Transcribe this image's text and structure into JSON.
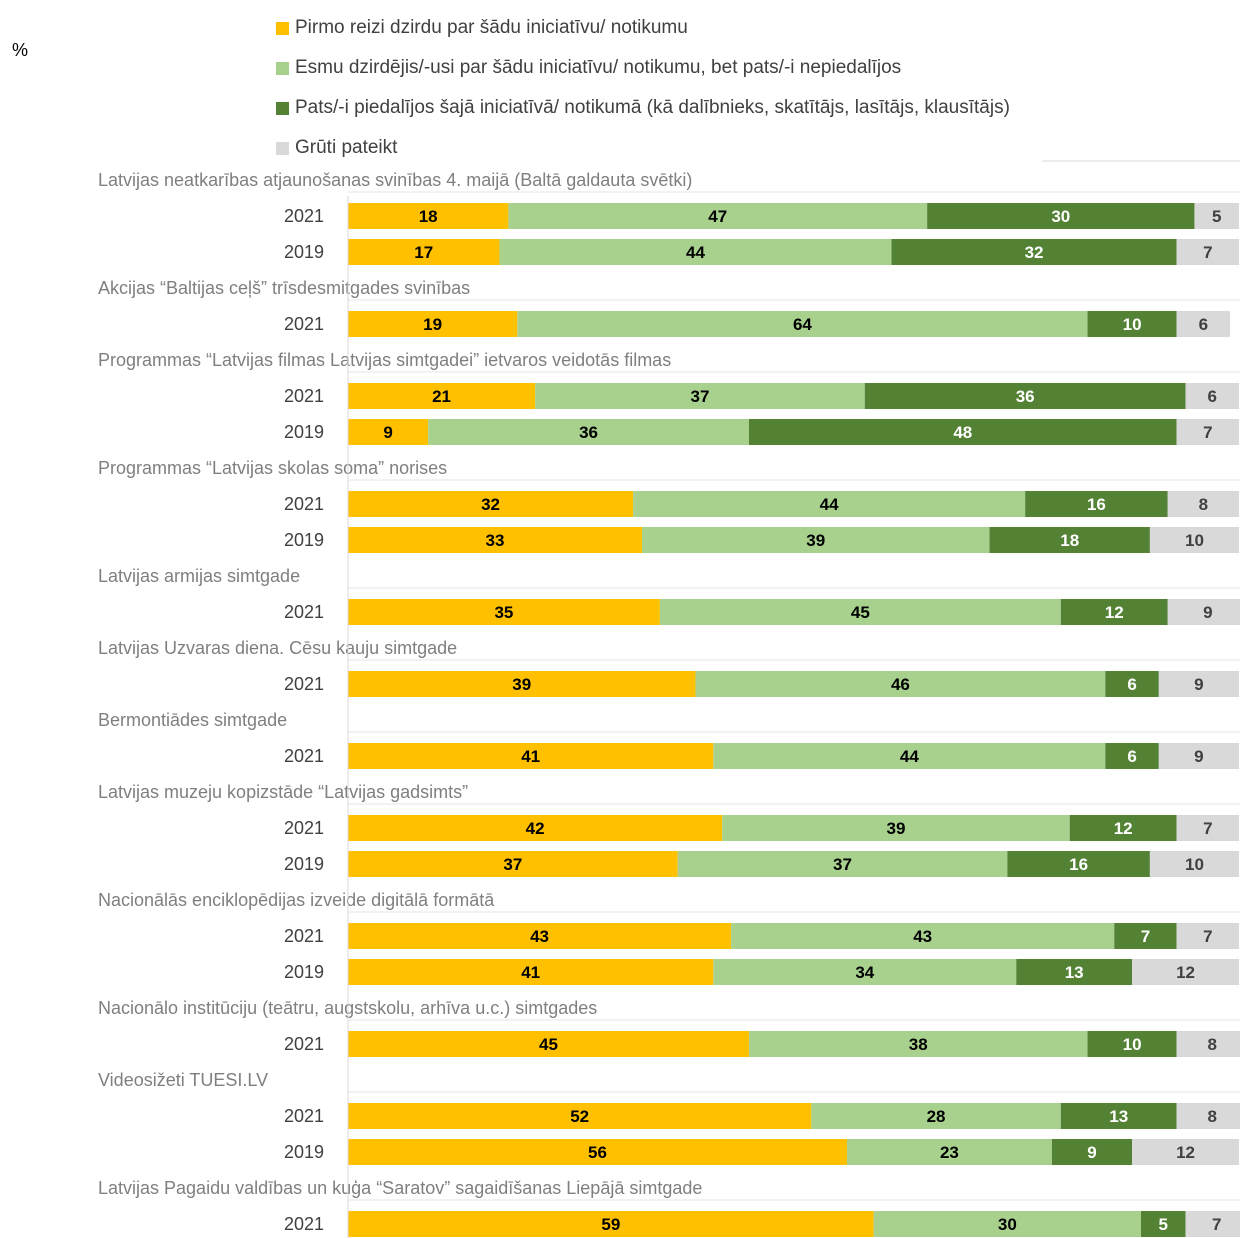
{
  "unit_label": "%",
  "colors": {
    "first_time": "#ffc000",
    "heard": "#a9d18e",
    "participated": "#548235",
    "hard_to_say": "#d9d9d9"
  },
  "chart_data": {
    "type": "bar",
    "orientation": "horizontal",
    "stacked": true,
    "xlim": [
      0,
      100
    ],
    "legend_position": "top",
    "series": [
      {
        "key": "first_time",
        "name": "Pirmo reizi dzirdu par šādu iniciatīvu/ notikumu"
      },
      {
        "key": "heard",
        "name": "Esmu dzirdējis/-usi par šādu iniciatīvu/ notikumu, bet pats/-i nepiedalījos"
      },
      {
        "key": "participated",
        "name": "Pats/-i piedalījos šajā iniciatīvā/ notikumā (kā dalībnieks, skatītājs, lasītājs, klausītājs)"
      },
      {
        "key": "hard_to_say",
        "name": "Grūti pateikt"
      }
    ],
    "groups": [
      {
        "label": "Latvijas neatkarības atjaunošanas svinības 4. maijā (Baltā galdauta svētki)",
        "rows": [
          {
            "year": "2021",
            "values": [
              18,
              47,
              30,
              5
            ]
          },
          {
            "year": "2019",
            "values": [
              17,
              44,
              32,
              7
            ]
          }
        ]
      },
      {
        "label": "Akcijas “Baltijas ceļš” trīsdesmitgades svinības",
        "rows": [
          {
            "year": "2021",
            "values": [
              19,
              64,
              10,
              6
            ]
          }
        ]
      },
      {
        "label": "Programmas “Latvijas filmas Latvijas simtgadei” ietvaros veidotās filmas",
        "rows": [
          {
            "year": "2021",
            "values": [
              21,
              37,
              36,
              6
            ]
          },
          {
            "year": "2019",
            "values": [
              9,
              36,
              48,
              7
            ]
          }
        ]
      },
      {
        "label": "Programmas “Latvijas skolas soma” norises",
        "rows": [
          {
            "year": "2021",
            "values": [
              32,
              44,
              16,
              8
            ]
          },
          {
            "year": "2019",
            "values": [
              33,
              39,
              18,
              10
            ]
          }
        ]
      },
      {
        "label": "Latvijas armijas simtgade",
        "rows": [
          {
            "year": "2021",
            "values": [
              35,
              45,
              12,
              9
            ]
          }
        ]
      },
      {
        "label": "Latvijas Uzvaras diena. Cēsu kauju simtgade",
        "rows": [
          {
            "year": "2021",
            "values": [
              39,
              46,
              6,
              9
            ]
          }
        ]
      },
      {
        "label": "Bermontiādes simtgade",
        "rows": [
          {
            "year": "2021",
            "values": [
              41,
              44,
              6,
              9
            ]
          }
        ]
      },
      {
        "label": "Latvijas muzeju kopizstāde “Latvijas gadsimts”",
        "rows": [
          {
            "year": "2021",
            "values": [
              42,
              39,
              12,
              7
            ]
          },
          {
            "year": "2019",
            "values": [
              37,
              37,
              16,
              10
            ]
          }
        ]
      },
      {
        "label": "Nacionālās enciklopēdijas izveide digitālā formātā",
        "rows": [
          {
            "year": "2021",
            "values": [
              43,
              43,
              7,
              7
            ]
          },
          {
            "year": "2019",
            "values": [
              41,
              34,
              13,
              12
            ]
          }
        ]
      },
      {
        "label": "Nacionālo institūciju (teātru, augstskolu, arhīva u.c.) simtgades",
        "rows": [
          {
            "year": "2021",
            "values": [
              45,
              38,
              10,
              8
            ]
          }
        ]
      },
      {
        "label": "Videosižeti TUESI.LV",
        "rows": [
          {
            "year": "2021",
            "values": [
              52,
              28,
              13,
              8
            ]
          },
          {
            "year": "2019",
            "values": [
              56,
              23,
              9,
              12
            ]
          }
        ]
      },
      {
        "label": "Latvijas Pagaidu valdības un kuģa “Saratov” sagaidīšanas Liepājā simtgade",
        "rows": [
          {
            "year": "2021",
            "values": [
              59,
              30,
              5,
              7
            ]
          }
        ]
      }
    ]
  }
}
